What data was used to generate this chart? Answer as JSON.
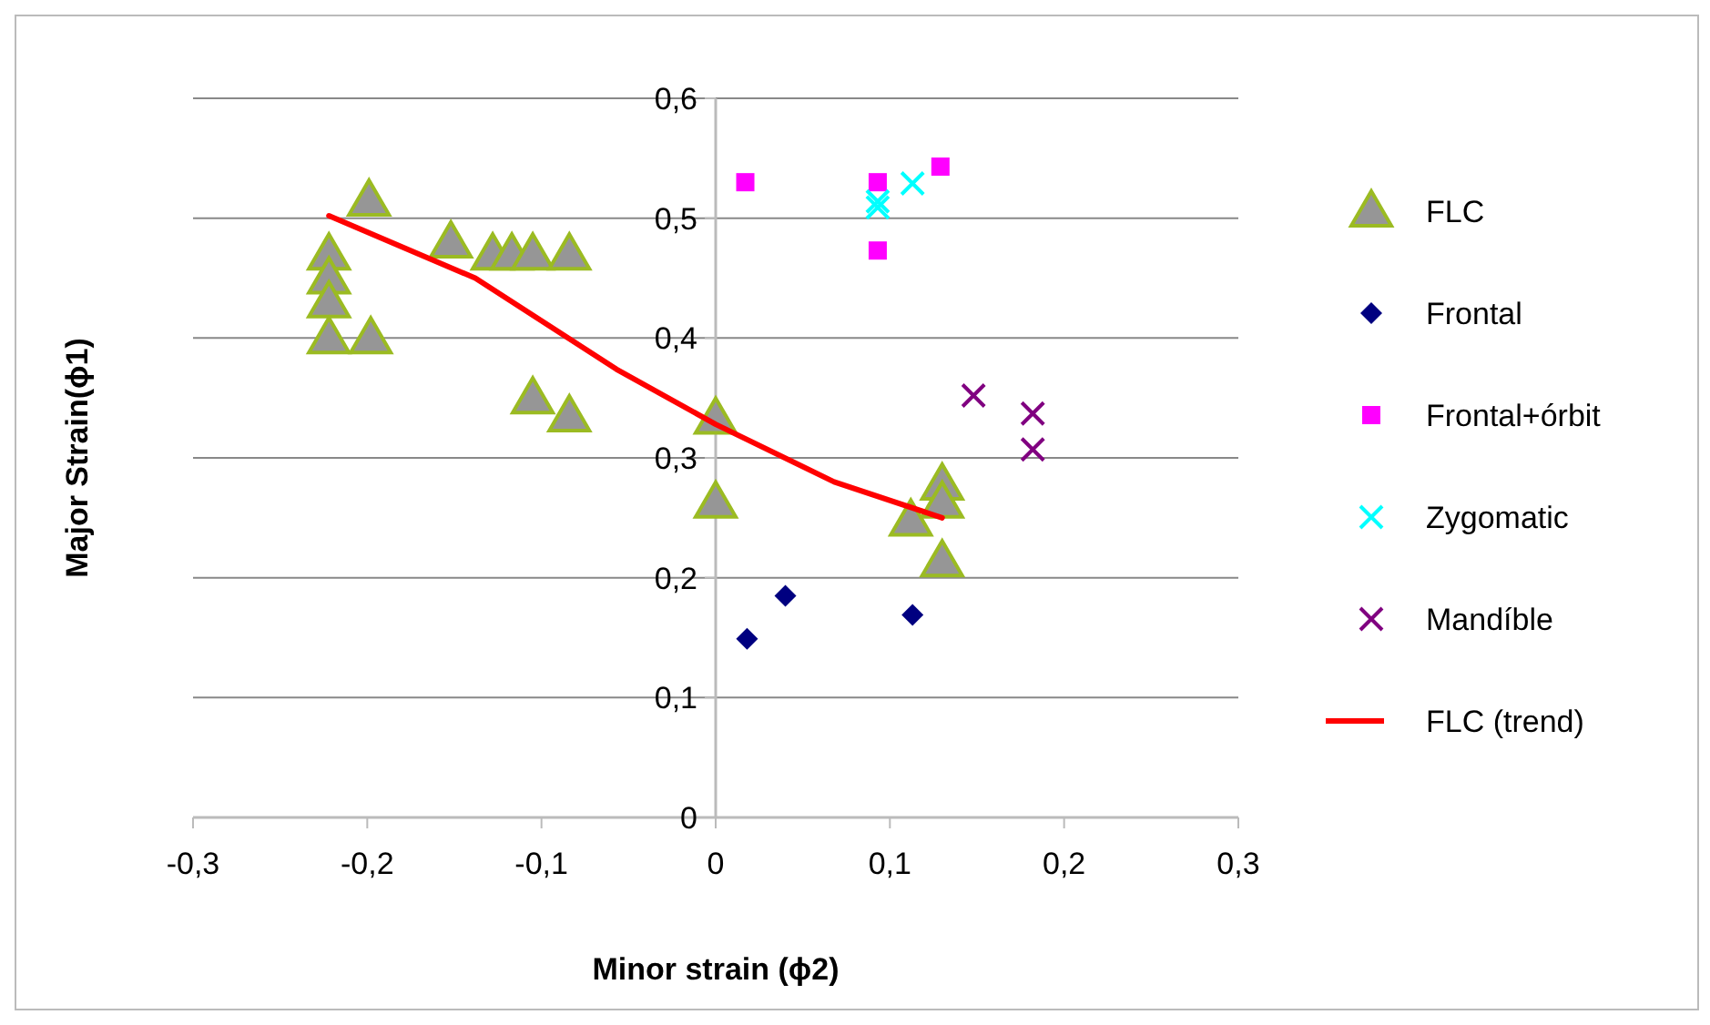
{
  "chart_data": {
    "type": "scatter",
    "xlabel": "Minor strain (ϕ2)",
    "ylabel": "Major Strain(ϕ1)",
    "xlim": [
      -0.3,
      0.3
    ],
    "ylim": [
      0,
      0.6
    ],
    "xticks": [
      {
        "value": -0.3,
        "label": "-0,3"
      },
      {
        "value": -0.2,
        "label": "-0,2"
      },
      {
        "value": -0.1,
        "label": "-0,1"
      },
      {
        "value": 0,
        "label": "0"
      },
      {
        "value": 0.1,
        "label": "0,1"
      },
      {
        "value": 0.2,
        "label": "0,2"
      },
      {
        "value": 0.3,
        "label": "0,3"
      }
    ],
    "yticks": [
      {
        "value": 0,
        "label": "0"
      },
      {
        "value": 0.1,
        "label": "0,1"
      },
      {
        "value": 0.2,
        "label": "0,2"
      },
      {
        "value": 0.3,
        "label": "0,3"
      },
      {
        "value": 0.4,
        "label": "0,4"
      },
      {
        "value": 0.5,
        "label": "0,5"
      },
      {
        "value": 0.6,
        "label": "0,6"
      }
    ],
    "grid": "y",
    "legend": "right",
    "series": [
      {
        "name": "FLC",
        "color": "#969696",
        "marker": "triangle",
        "x": [
          -0.222,
          -0.222,
          -0.222,
          -0.222,
          -0.199,
          -0.198,
          -0.152,
          -0.128,
          -0.117,
          -0.105,
          -0.084,
          -0.105,
          -0.084,
          0,
          0,
          0.112,
          0.13,
          0.13,
          0.13
        ],
        "values": [
          0.47,
          0.45,
          0.43,
          0.4,
          0.515,
          0.4,
          0.48,
          0.47,
          0.47,
          0.47,
          0.47,
          0.35,
          0.335,
          0.333,
          0.263,
          0.248,
          0.278,
          0.263,
          0.214
        ]
      },
      {
        "name": "Frontal",
        "color": "#000080",
        "marker": "diamond",
        "x": [
          0.018,
          0.04,
          0.113
        ],
        "values": [
          0.149,
          0.185,
          0.169
        ]
      },
      {
        "name": "Frontal+órbit",
        "color": "#ff00ff",
        "marker": "square",
        "x": [
          0.017,
          0.093,
          0.093,
          0.129
        ],
        "values": [
          0.53,
          0.53,
          0.473,
          0.543
        ]
      },
      {
        "name": "Zygomatic",
        "color": "#00ffff",
        "marker": "cross",
        "x": [
          0.093,
          0.093,
          0.113
        ],
        "values": [
          0.514,
          0.509,
          0.529
        ]
      },
      {
        "name": "Mandíble",
        "color": "#800080",
        "marker": "cross",
        "x": [
          0.148,
          0.182,
          0.182
        ],
        "values": [
          0.352,
          0.337,
          0.307
        ]
      },
      {
        "name": "FLC (trend)",
        "type": "line",
        "color": "#ff0000",
        "line_style": "solid",
        "x": [
          -0.222,
          -0.138,
          -0.057,
          0,
          0.068,
          0.13
        ],
        "values": [
          0.502,
          0.45,
          0.374,
          0.328,
          0.28,
          0.25
        ]
      }
    ]
  }
}
